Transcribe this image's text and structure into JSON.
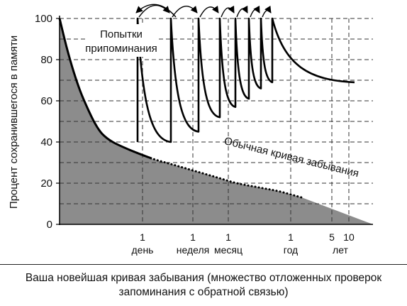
{
  "chart_data": {
    "type": "line",
    "ylabel": "Процент сохранившегося в памяти",
    "ylim": [
      0,
      100
    ],
    "y_ticks": [
      "0",
      "20",
      "40",
      "60",
      "80",
      "100"
    ],
    "x_ticks": [
      {
        "value": "1",
        "unit": "день"
      },
      {
        "value": "1",
        "unit": "неделя"
      },
      {
        "value": "1",
        "unit": "месяц"
      },
      {
        "value": "1",
        "unit": "год"
      },
      {
        "value": "5",
        "unit": ""
      },
      {
        "value": "10",
        "unit": ""
      }
    ],
    "x_unit_lower": "лет",
    "grid": true,
    "series": [
      {
        "name": "Обычная кривая забывания",
        "style": "dotted",
        "points": [
          [
            0,
            100
          ],
          [
            10,
            86
          ],
          [
            20,
            74
          ],
          [
            30,
            64
          ],
          [
            40,
            56
          ],
          [
            50,
            49
          ],
          [
            60,
            44
          ],
          [
            75,
            40
          ],
          [
            100,
            36
          ],
          [
            130,
            32
          ],
          [
            160,
            29
          ],
          [
            190,
            26
          ],
          [
            220,
            23
          ],
          [
            250,
            20
          ],
          [
            280,
            18
          ],
          [
            310,
            16
          ],
          [
            342,
            13
          ]
        ]
      },
      {
        "name": "Попытки припоминания",
        "style": "solid",
        "review_times": [
          110,
          157,
          196,
          226,
          248,
          267,
          284,
          300
        ],
        "peaks": [
          100,
          100,
          100,
          100,
          100,
          100,
          100,
          100
        ],
        "troughs": [
          40,
          40,
          45,
          52,
          57,
          61,
          66,
          69
        ]
      }
    ],
    "annotations": {
      "reviews": "Попытки\nприпоминания",
      "normal_curve": "Обычная кривая забывания"
    },
    "colors": {
      "fill": "#8c8c8c",
      "line": "#000000",
      "grid": "#333333"
    }
  },
  "caption": {
    "line1": "Ваша новейшая кривая забывания (множество отложенных проверок",
    "line2": "запоминания с обратной связью)"
  }
}
